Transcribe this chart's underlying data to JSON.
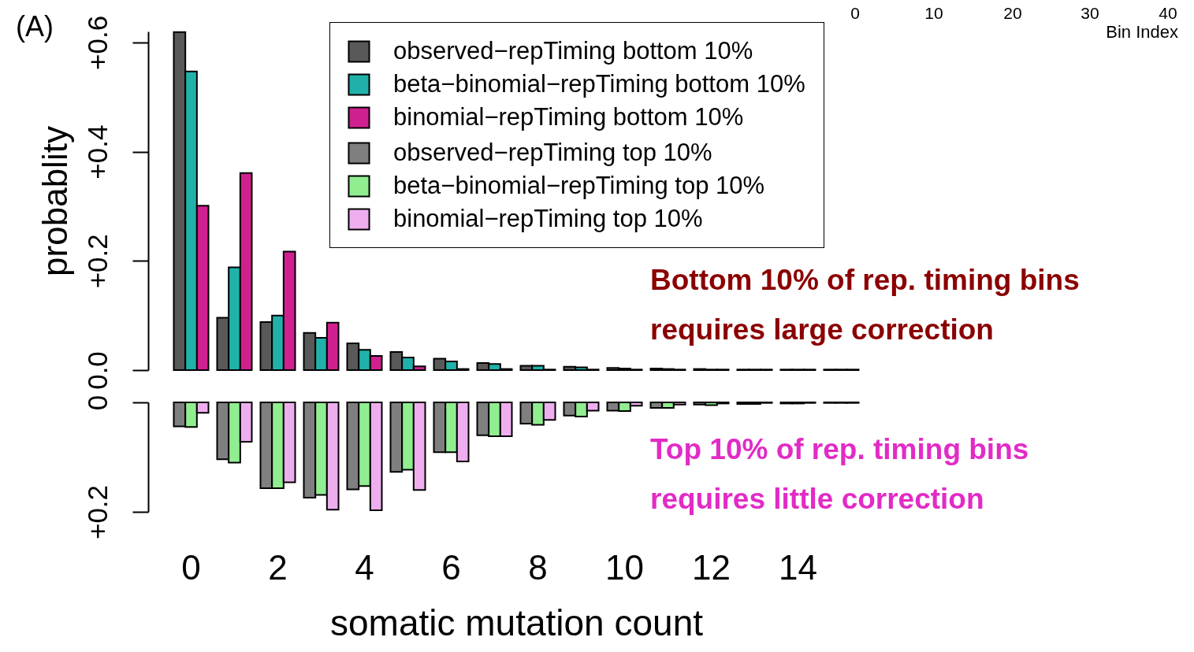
{
  "chart_data": [
    {
      "type": "bar",
      "ylabel": "probablity",
      "categories": [
        "0",
        null,
        "2",
        null,
        "4",
        null,
        "6",
        null,
        "8",
        null,
        "10",
        null,
        "12",
        null,
        "14",
        null
      ],
      "ylim": [
        0,
        0.62
      ],
      "yticks": [
        {
          "value": 0,
          "label": "0.0"
        },
        {
          "value": 0.2,
          "label": "+0.2"
        },
        {
          "value": 0.4,
          "label": "+0.4"
        },
        {
          "value": 0.6,
          "label": "+0.6"
        }
      ],
      "tick_labels": "y",
      "legend": "top right",
      "annotations": [
        "(A)",
        "Bottom 10% of rep. timing bins",
        "requires large correction",
        "0",
        "10",
        "20",
        "30",
        "40",
        "Bin Index"
      ],
      "series": [
        {
          "name": "observed−repTiming bottom 10%",
          "color": "#595959",
          "values": [
            0.619,
            0.096,
            0.088,
            0.068,
            0.049,
            0.033,
            0.021,
            0.013,
            0.008,
            0.006,
            0.004,
            0.003,
            0.002,
            0.001,
            0.001,
            0.001
          ]
        },
        {
          "name": "beta−binomial−repTiming bottom 10%",
          "color": "#20b2aa",
          "values": [
            0.547,
            0.188,
            0.1,
            0.059,
            0.037,
            0.023,
            0.016,
            0.011,
            0.008,
            0.005,
            0.003,
            0.002,
            0.001,
            0.001,
            0.001,
            0.001
          ]
        },
        {
          "name": "binomial−repTiming bottom 10%",
          "color": "#d02090",
          "values": [
            0.301,
            0.361,
            0.217,
            0.087,
            0.026,
            0.007,
            0.002,
            0.002,
            0.001,
            0.001,
            0.001,
            0.001,
            0.001,
            0.001,
            0.001,
            0.001
          ]
        }
      ]
    },
    {
      "type": "bar",
      "xlabel": "somatic mutation count",
      "categories": [
        "0",
        null,
        "2",
        null,
        "4",
        null,
        "6",
        null,
        "8",
        null,
        "10",
        null,
        "12",
        null,
        "14",
        null
      ],
      "ylim": [
        0.2,
        0
      ],
      "yticks": [
        0,
        {
          "value": 0.2,
          "label": "+0.2"
        }
      ],
      "annotations": [
        "Top 10% of rep. timing bins",
        "requires little correction"
      ],
      "legend": "top right",
      "series": [
        {
          "name": "observed−repTiming top 10%",
          "color": "#7f7f7f",
          "values": [
            0.044,
            0.104,
            0.157,
            0.174,
            0.159,
            0.127,
            0.091,
            0.06,
            0.039,
            0.024,
            0.015,
            0.01,
            0.004,
            0.003,
            0.002,
            0.001
          ]
        },
        {
          "name": "beta−binomial−repTiming top 10%",
          "color": "#90ee90",
          "values": [
            0.045,
            0.11,
            0.157,
            0.169,
            0.153,
            0.123,
            0.091,
            0.062,
            0.041,
            0.026,
            0.016,
            0.01,
            0.005,
            0.003,
            0.002,
            0.001
          ]
        },
        {
          "name": "binomial−repTiming top 10%",
          "color": "#eeaeee",
          "values": [
            0.019,
            0.072,
            0.146,
            0.196,
            0.197,
            0.16,
            0.108,
            0.062,
            0.032,
            0.015,
            0.006,
            0.004,
            0.002,
            0.001,
            0.001,
            0.001
          ]
        }
      ]
    }
  ]
}
